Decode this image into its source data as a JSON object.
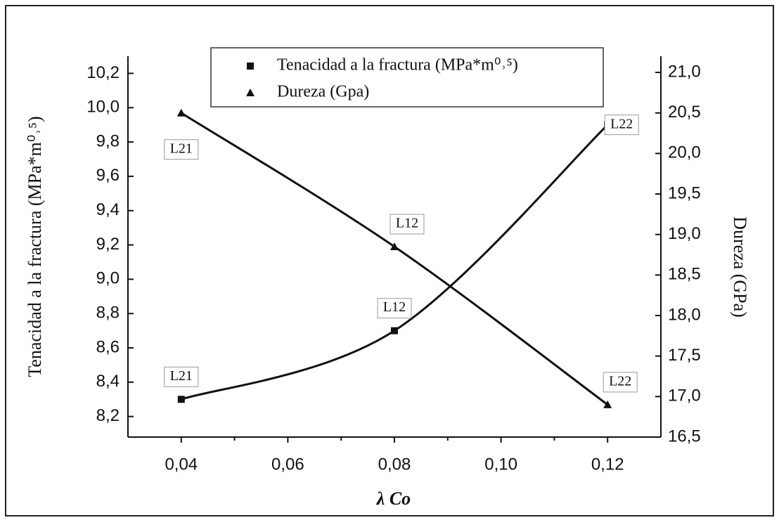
{
  "chart_data": {
    "type": "line",
    "x_label": "λ Co",
    "y_label": "Tenacidad a la fractura (MPa*m⁰˒⁵)",
    "y2_label": "Dureza (GPa)",
    "x": [
      0.04,
      0.08,
      0.12
    ],
    "series": [
      {
        "name": "Tenacidad a la fractura (MPa*m⁰˒⁵)",
        "color": "#111111",
        "marker": "square",
        "values": [
          8.3,
          8.7,
          9.9
        ],
        "labels": [
          "L21",
          "L12",
          "L22"
        ]
      },
      {
        "name": "Dureza (Gpa)",
        "color": "#111111",
        "marker": "triangle",
        "axis": "y2",
        "values": [
          20.5,
          18.85,
          16.9
        ],
        "labels": [
          "L21",
          "L12",
          "L22"
        ]
      }
    ],
    "xlim": [
      0.03,
      0.13
    ],
    "xticks": [
      {
        "value": 0.04,
        "label": "0,04"
      },
      {
        "value": 0.06,
        "label": "0,06"
      },
      {
        "value": 0.08,
        "label": "0,08"
      },
      {
        "value": 0.1,
        "label": "0,10"
      },
      {
        "value": 0.12,
        "label": "0,12"
      }
    ],
    "ylim": [
      8.08,
      10.3
    ],
    "yticks": [
      {
        "value": 8.2,
        "label": "8,2"
      },
      {
        "value": 8.4,
        "label": "8,4"
      },
      {
        "value": 8.6,
        "label": "8,6"
      },
      {
        "value": 8.8,
        "label": "8,8"
      },
      {
        "value": 9.0,
        "label": "9,0"
      },
      {
        "value": 9.2,
        "label": "9,2"
      },
      {
        "value": 9.4,
        "label": "9,4"
      },
      {
        "value": 9.6,
        "label": "9,6"
      },
      {
        "value": 9.8,
        "label": "9,8"
      },
      {
        "value": 10.0,
        "label": "10,0"
      },
      {
        "value": 10.2,
        "label": "10,2"
      }
    ],
    "y2lim": [
      16.5,
      21.2
    ],
    "y2ticks": [
      {
        "value": 16.5,
        "label": "16,5"
      },
      {
        "value": 17.0,
        "label": "17,0"
      },
      {
        "value": 17.5,
        "label": "17,5"
      },
      {
        "value": 18.0,
        "label": "18,0"
      },
      {
        "value": 18.5,
        "label": "18,5"
      },
      {
        "value": 19.0,
        "label": "19,0"
      },
      {
        "value": 19.5,
        "label": "19,5"
      },
      {
        "value": 20.0,
        "label": "20,0"
      },
      {
        "value": 20.5,
        "label": "20,5"
      },
      {
        "value": 21.0,
        "label": "21,0"
      }
    ],
    "legend": "top"
  }
}
